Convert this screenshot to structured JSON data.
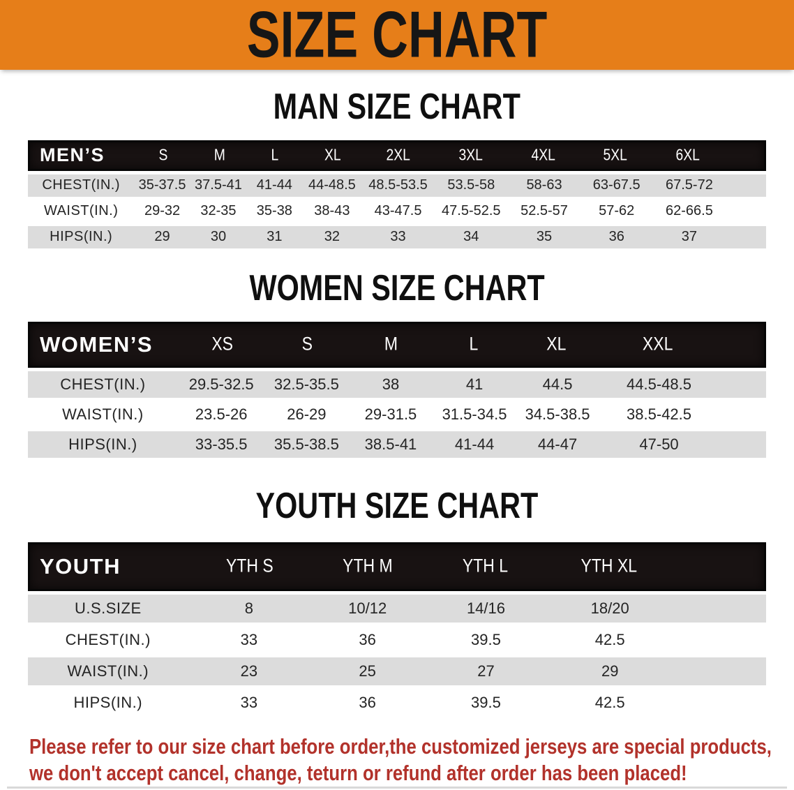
{
  "banner": {
    "title": "SIZE CHART",
    "bg_color": "#e67e19",
    "text_color": "#161616"
  },
  "sections": [
    {
      "id": "men",
      "title": "MAN SIZE CHART",
      "corner_label": "MEN’S",
      "columns": [
        "S",
        "M",
        "L",
        "XL",
        "2XL",
        "3XL",
        "4XL",
        "5XL",
        "6XL"
      ],
      "rows": [
        {
          "label": "CHEST(IN.)",
          "values": [
            "35-37.5",
            "37.5-41",
            "41-44",
            "44-48.5",
            "48.5-53.5",
            "53.5-58",
            "58-63",
            "63-67.5",
            "67.5-72"
          ]
        },
        {
          "label": "WAIST(IN.)",
          "values": [
            "29-32",
            "32-35",
            "35-38",
            "38-43",
            "43-47.5",
            "47.5-52.5",
            "52.5-57",
            "57-62",
            "62-66.5"
          ]
        },
        {
          "label": "HIPS(IN.)",
          "values": [
            "29",
            "30",
            "31",
            "32",
            "33",
            "34",
            "35",
            "36",
            "37"
          ]
        }
      ]
    },
    {
      "id": "women",
      "title": "WOMEN SIZE CHART",
      "corner_label": "WOMEN’S",
      "columns": [
        "XS",
        "S",
        "M",
        "L",
        "XL",
        "XXL"
      ],
      "rows": [
        {
          "label": "CHEST(IN.)",
          "values": [
            "29.5-32.5",
            "32.5-35.5",
            "38",
            "41",
            "44.5",
            "44.5-48.5"
          ]
        },
        {
          "label": "WAIST(IN.)",
          "values": [
            "23.5-26",
            "26-29",
            "29-31.5",
            "31.5-34.5",
            "34.5-38.5",
            "38.5-42.5"
          ]
        },
        {
          "label": "HIPS(IN.)",
          "values": [
            "33-35.5",
            "35.5-38.5",
            "38.5-41",
            "41-44",
            "44-47",
            "47-50"
          ]
        }
      ]
    },
    {
      "id": "youth",
      "title": "YOUTH SIZE CHART",
      "corner_label": "YOUTH",
      "columns": [
        "YTH S",
        "YTH M",
        "YTH L",
        "YTH XL"
      ],
      "rows": [
        {
          "label": "U.S.SIZE",
          "values": [
            "8",
            "10/12",
            "14/16",
            "18/20"
          ]
        },
        {
          "label": "CHEST(IN.)",
          "values": [
            "33",
            "36",
            "39.5",
            "42.5"
          ]
        },
        {
          "label": "WAIST(IN.)",
          "values": [
            "23",
            "25",
            "27",
            "29"
          ]
        },
        {
          "label": "HIPS(IN.)",
          "values": [
            "33",
            "36",
            "39.5",
            "42.5"
          ]
        }
      ]
    }
  ],
  "disclaimer": {
    "line1": "Please refer to our size chart before order,the customized jerseys are special products,",
    "line2": "we don't accept cancel, change, teturn or refund after order has been placed!",
    "color": "#b2322b"
  }
}
